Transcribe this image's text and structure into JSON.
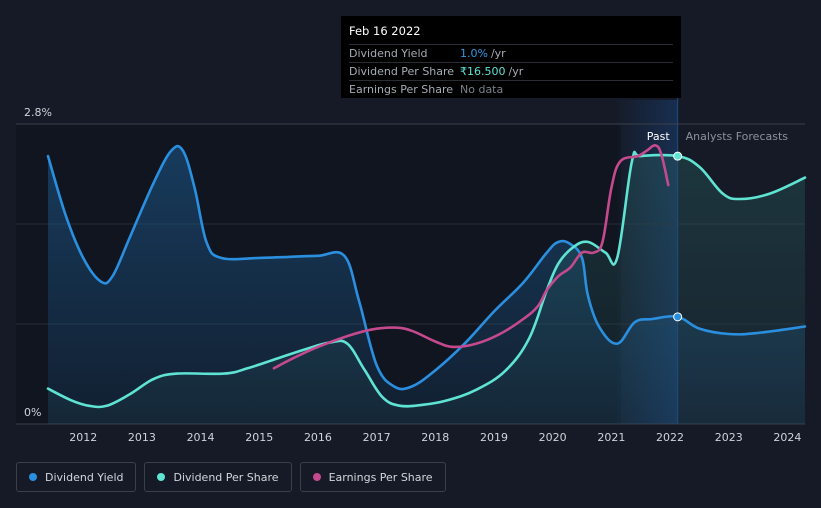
{
  "tooltip": {
    "date": "Feb 16 2022",
    "rows": [
      {
        "label": "Dividend Yield",
        "value": "1.0%",
        "unit": "/yr"
      },
      {
        "label": "Dividend Per Share",
        "value": "₹16.500",
        "unit": "/yr"
      },
      {
        "label": "Earnings Per Share",
        "value": "No data",
        "unit": ""
      }
    ]
  },
  "legend": [
    {
      "label": "Dividend Yield",
      "color": "#2b8fe0"
    },
    {
      "label": "Dividend Per Share",
      "color": "#5fe3d3"
    },
    {
      "label": "Earnings Per Share",
      "color": "#c44a8d"
    }
  ],
  "chart_data": {
    "type": "line",
    "y_top_label": "2.8%",
    "y_bottom_label": "0%",
    "ylim": [
      0,
      2.8
    ],
    "xlim": [
      2011.4,
      2024.3
    ],
    "x_ticks": [
      "2012",
      "2013",
      "2014",
      "2015",
      "2016",
      "2017",
      "2018",
      "2019",
      "2020",
      "2021",
      "2022",
      "2023",
      "2024"
    ],
    "past_label": "Past",
    "forecast_label": "Analysts Forecasts",
    "marker_x": 2022.13,
    "past_band_start": 2021.1,
    "colors": {
      "yield": "#2b8fe0",
      "dps": "#5fe3d3",
      "eps": "#c44a8d",
      "background": "#151a26"
    },
    "series": [
      {
        "name": "Dividend Yield",
        "key": "yield",
        "points": [
          [
            2011.4,
            2.5
          ],
          [
            2011.7,
            1.95
          ],
          [
            2012.0,
            1.55
          ],
          [
            2012.3,
            1.33
          ],
          [
            2012.5,
            1.38
          ],
          [
            2012.8,
            1.75
          ],
          [
            2013.2,
            2.25
          ],
          [
            2013.5,
            2.55
          ],
          [
            2013.7,
            2.55
          ],
          [
            2013.9,
            2.2
          ],
          [
            2014.1,
            1.7
          ],
          [
            2014.35,
            1.55
          ],
          [
            2015.0,
            1.55
          ],
          [
            2015.5,
            1.56
          ],
          [
            2016.0,
            1.57
          ],
          [
            2016.45,
            1.57
          ],
          [
            2016.7,
            1.15
          ],
          [
            2017.0,
            0.55
          ],
          [
            2017.3,
            0.35
          ],
          [
            2017.6,
            0.35
          ],
          [
            2018.0,
            0.5
          ],
          [
            2018.5,
            0.75
          ],
          [
            2019.0,
            1.05
          ],
          [
            2019.5,
            1.32
          ],
          [
            2019.9,
            1.6
          ],
          [
            2020.1,
            1.7
          ],
          [
            2020.3,
            1.68
          ],
          [
            2020.5,
            1.55
          ],
          [
            2020.6,
            1.2
          ],
          [
            2020.8,
            0.9
          ],
          [
            2021.1,
            0.75
          ],
          [
            2021.4,
            0.95
          ],
          [
            2021.7,
            0.98
          ],
          [
            2022.13,
            1.0
          ],
          [
            2022.5,
            0.89
          ],
          [
            2023.0,
            0.84
          ],
          [
            2023.5,
            0.85
          ],
          [
            2024.3,
            0.91
          ]
        ]
      },
      {
        "name": "Dividend Per Share",
        "key": "dps",
        "points": [
          [
            2011.4,
            0.33
          ],
          [
            2011.8,
            0.22
          ],
          [
            2012.1,
            0.17
          ],
          [
            2012.4,
            0.17
          ],
          [
            2012.8,
            0.28
          ],
          [
            2013.2,
            0.42
          ],
          [
            2013.6,
            0.47
          ],
          [
            2014.4,
            0.47
          ],
          [
            2014.8,
            0.52
          ],
          [
            2015.3,
            0.61
          ],
          [
            2015.8,
            0.7
          ],
          [
            2016.2,
            0.76
          ],
          [
            2016.5,
            0.75
          ],
          [
            2016.8,
            0.5
          ],
          [
            2017.1,
            0.25
          ],
          [
            2017.4,
            0.17
          ],
          [
            2017.8,
            0.18
          ],
          [
            2018.2,
            0.22
          ],
          [
            2018.7,
            0.32
          ],
          [
            2019.2,
            0.5
          ],
          [
            2019.6,
            0.8
          ],
          [
            2019.9,
            1.25
          ],
          [
            2020.1,
            1.5
          ],
          [
            2020.35,
            1.65
          ],
          [
            2020.6,
            1.7
          ],
          [
            2020.9,
            1.6
          ],
          [
            2021.1,
            1.55
          ],
          [
            2021.35,
            2.45
          ],
          [
            2021.5,
            2.5
          ],
          [
            2022.13,
            2.5
          ],
          [
            2022.5,
            2.4
          ],
          [
            2022.9,
            2.15
          ],
          [
            2023.2,
            2.1
          ],
          [
            2023.7,
            2.15
          ],
          [
            2024.3,
            2.3
          ]
        ]
      },
      {
        "name": "Earnings Per Share",
        "key": "eps",
        "points": [
          [
            2015.25,
            0.52
          ],
          [
            2015.6,
            0.62
          ],
          [
            2016.0,
            0.72
          ],
          [
            2016.5,
            0.82
          ],
          [
            2016.9,
            0.88
          ],
          [
            2017.3,
            0.9
          ],
          [
            2017.6,
            0.87
          ],
          [
            2018.0,
            0.77
          ],
          [
            2018.3,
            0.72
          ],
          [
            2018.7,
            0.75
          ],
          [
            2019.1,
            0.84
          ],
          [
            2019.5,
            0.98
          ],
          [
            2019.75,
            1.1
          ],
          [
            2019.9,
            1.25
          ],
          [
            2020.1,
            1.38
          ],
          [
            2020.3,
            1.46
          ],
          [
            2020.5,
            1.6
          ],
          [
            2020.7,
            1.6
          ],
          [
            2020.85,
            1.7
          ],
          [
            2021.0,
            2.2
          ],
          [
            2021.15,
            2.45
          ],
          [
            2021.45,
            2.5
          ],
          [
            2021.6,
            2.55
          ],
          [
            2021.75,
            2.6
          ],
          [
            2021.85,
            2.52
          ],
          [
            2021.97,
            2.23
          ]
        ]
      }
    ]
  }
}
